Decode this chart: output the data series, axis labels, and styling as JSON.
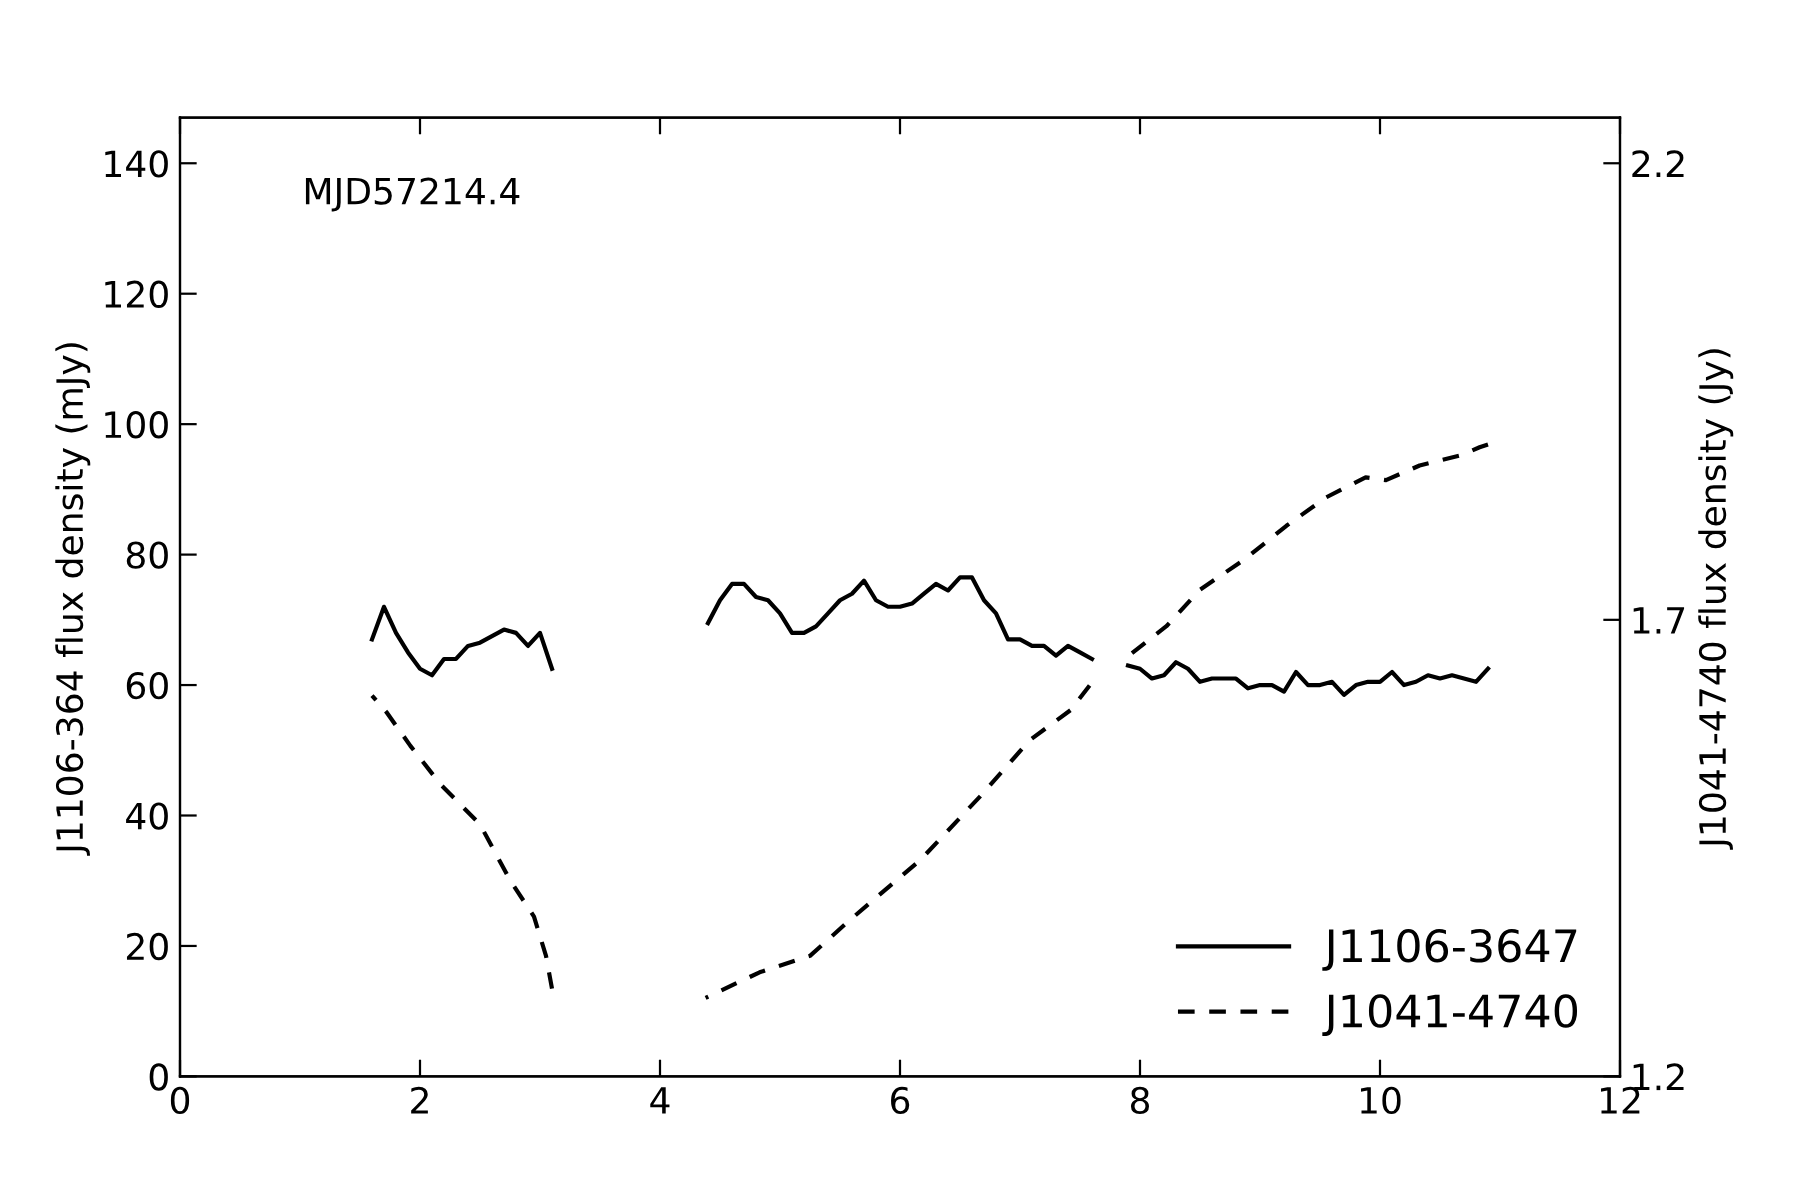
{
  "chart_data": {
    "type": "line",
    "ylabel": "J1106-364 flux density (mJy)",
    "y2label": "J1041-4740 flux density (Jy)",
    "annotations": [
      "MJD57214.4"
    ],
    "xlim": [
      0,
      12
    ],
    "xticks": [
      0,
      2,
      4,
      6,
      8,
      10,
      12
    ],
    "ylim": [
      0,
      147
    ],
    "yticks": [
      0,
      20,
      40,
      60,
      80,
      100,
      120,
      140
    ],
    "y2lim": [
      1.2,
      2.25
    ],
    "y2ticks": [
      1.2,
      1.7,
      2.2
    ],
    "grid": false,
    "legend": "bottom right",
    "series": [
      {
        "name": "J1106-3647",
        "color": "#000000",
        "line_style": "solid",
        "x": [
          1.6,
          1.7,
          1.8,
          1.9,
          2.0,
          2.1,
          2.2,
          2.3,
          2.4,
          2.5,
          2.6,
          2.7,
          2.8,
          2.9,
          3.0,
          3.1,
          4.0,
          4.4,
          4.5,
          4.6,
          4.7,
          4.8,
          4.9,
          5.0,
          5.1,
          5.2,
          5.3,
          5.4,
          5.5,
          5.6,
          5.7,
          5.8,
          5.9,
          6.0,
          6.1,
          6.2,
          6.3,
          6.4,
          6.5,
          6.6,
          6.7,
          6.8,
          6.9,
          7.0,
          7.1,
          7.2,
          7.3,
          7.4,
          7.5,
          7.6,
          7.75,
          7.9,
          8.0,
          8.1,
          8.2,
          8.3,
          8.4,
          8.5,
          8.6,
          8.7,
          8.8,
          8.9,
          9.0,
          9.1,
          9.2,
          9.3,
          9.4,
          9.5,
          9.6,
          9.7,
          9.8,
          9.9,
          10.0,
          10.1,
          10.2,
          10.3,
          10.4,
          10.5,
          10.6,
          10.7,
          10.8,
          10.9
        ],
        "values": [
          67,
          72,
          68,
          65,
          62.5,
          61.5,
          64,
          64,
          66,
          66.5,
          67.5,
          68.5,
          68,
          66,
          68,
          62.5,
          null,
          69.5,
          73,
          75.5,
          75.5,
          73.5,
          73,
          71,
          68,
          68,
          69,
          71,
          73,
          74,
          76,
          73,
          72,
          72,
          72.5,
          74,
          75.5,
          74.5,
          76.5,
          76.5,
          73,
          71,
          67,
          67,
          66,
          66,
          64.5,
          66,
          65,
          64,
          null,
          63,
          62.5,
          61,
          61.5,
          63.5,
          62.5,
          60.5,
          61,
          61,
          61,
          59.5,
          60,
          60,
          59,
          62,
          60,
          60,
          60.5,
          58.5,
          60,
          60.5,
          60.5,
          62,
          60,
          60.5,
          61.5,
          61,
          61.5,
          61,
          60.5,
          62.5
        ]
      },
      {
        "name": "J1041-4740",
        "color": "#000000",
        "line_style": "dashed",
        "axis": "y2",
        "x": [
          1.6,
          1.72,
          1.92,
          2.17,
          2.5,
          2.75,
          2.95,
          3.05,
          3.1,
          4.0,
          4.38,
          4.83,
          5.25,
          5.58,
          6.17,
          6.67,
          7.08,
          7.42,
          7.58,
          7.75,
          7.88,
          8.22,
          8.5,
          8.87,
          9.22,
          9.55,
          9.88,
          10.05,
          10.33,
          10.67,
          10.83,
          10.9
        ],
        "values": [
          1.617,
          1.599,
          1.562,
          1.52,
          1.476,
          1.415,
          1.375,
          1.332,
          1.296,
          null,
          1.286,
          1.314,
          1.332,
          1.371,
          1.437,
          1.507,
          1.568,
          1.601,
          1.628,
          null,
          1.658,
          1.693,
          1.733,
          1.766,
          1.803,
          1.834,
          1.856,
          1.853,
          1.869,
          1.88,
          1.889,
          1.892
        ]
      }
    ]
  }
}
